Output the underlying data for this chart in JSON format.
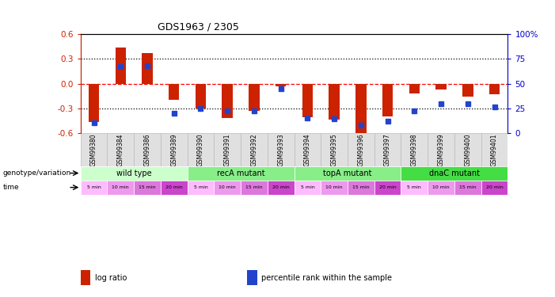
{
  "title": "GDS1963 / 2305",
  "samples": [
    "GSM99380",
    "GSM99384",
    "GSM99386",
    "GSM99389",
    "GSM99390",
    "GSM99391",
    "GSM99392",
    "GSM99393",
    "GSM99394",
    "GSM99395",
    "GSM99396",
    "GSM99397",
    "GSM99398",
    "GSM99399",
    "GSM99400",
    "GSM99401"
  ],
  "log_ratio": [
    -0.47,
    0.44,
    0.37,
    -0.2,
    -0.3,
    -0.42,
    -0.33,
    -0.03,
    -0.41,
    -0.44,
    -0.6,
    -0.4,
    -0.12,
    -0.07,
    -0.16,
    -0.13
  ],
  "percentile": [
    10,
    67,
    68,
    20,
    25,
    22,
    22,
    45,
    15,
    14,
    8,
    12,
    22,
    30,
    30,
    26
  ],
  "bar_color": "#cc2200",
  "dot_color": "#2244cc",
  "ylim": [
    -0.6,
    0.6
  ],
  "yticks_left": [
    -0.6,
    -0.3,
    0.0,
    0.3,
    0.6
  ],
  "yticks_right": [
    0,
    25,
    50,
    75,
    100
  ],
  "hline_y": [
    0.3,
    0.0,
    -0.3
  ],
  "hline_colors": [
    "black",
    "red",
    "black"
  ],
  "hline_styles": [
    "dotted",
    "dashed",
    "dotted"
  ],
  "groups": [
    {
      "label": "wild type",
      "start": 0,
      "end": 4,
      "color": "#ccffcc"
    },
    {
      "label": "recA mutant",
      "start": 4,
      "end": 8,
      "color": "#88ee88"
    },
    {
      "label": "topA mutant",
      "start": 8,
      "end": 12,
      "color": "#88ee88"
    },
    {
      "label": "dnaC mutant",
      "start": 12,
      "end": 16,
      "color": "#44dd44"
    }
  ],
  "time_labels": [
    "5 min",
    "10 min",
    "15 min",
    "20 min",
    "5 min",
    "10 min",
    "15 min",
    "20 min",
    "5 min",
    "10 min",
    "15 min",
    "20 min",
    "5 min",
    "10 min",
    "15 min",
    "20 min"
  ],
  "right_axis_color": "#0000cc",
  "left_axis_color": "#cc2200",
  "legend_items": [
    {
      "color": "#cc2200",
      "label": "log ratio"
    },
    {
      "color": "#2244cc",
      "label": "percentile rank within the sample"
    }
  ],
  "label_genotype": "genotype/variation",
  "label_time": "time"
}
